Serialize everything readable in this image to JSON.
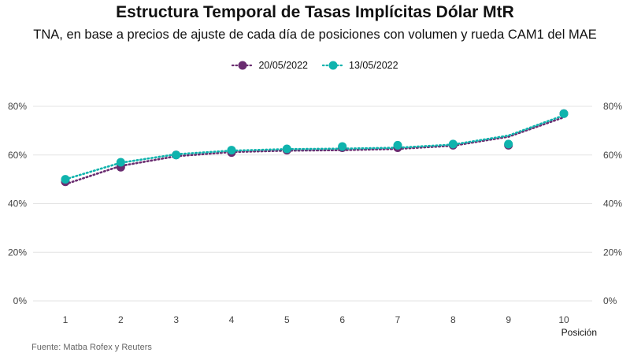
{
  "chart_data": {
    "type": "line",
    "title": "Estructura Temporal de Tasas Implícitas Dólar MtR",
    "subtitle": "TNA, en base a precios de ajuste de cada día de posiciones con volumen y rueda CAM1 del MAE",
    "xlabel": "Posición",
    "ylabel": "",
    "x": [
      1,
      2,
      3,
      4,
      5,
      6,
      7,
      8,
      9,
      10
    ],
    "ylim": [
      0,
      0.8
    ],
    "yticks": [
      0,
      0.2,
      0.4,
      0.6,
      0.8
    ],
    "ytick_labels": [
      "0%",
      "20%",
      "40%",
      "60%",
      "80%"
    ],
    "xtick_labels": [
      "1",
      "2",
      "3",
      "4",
      "5",
      "6",
      "7",
      "8",
      "9",
      "10"
    ],
    "grid": true,
    "legend_position": "top",
    "series": [
      {
        "name": "20/05/2022",
        "color": "#6a2c70",
        "values": [
          0.49,
          0.55,
          0.6,
          0.61,
          0.62,
          0.63,
          0.63,
          0.64,
          0.64,
          0.77
        ],
        "trend": [
          0.48,
          0.555,
          0.595,
          0.612,
          0.618,
          0.62,
          0.625,
          0.638,
          0.675,
          0.755
        ]
      },
      {
        "name": "13/05/2022",
        "color": "#0fb3ad",
        "values": [
          0.5,
          0.57,
          0.6,
          0.62,
          0.625,
          0.635,
          0.64,
          0.645,
          0.645,
          0.77
        ],
        "trend": [
          0.5,
          0.568,
          0.603,
          0.618,
          0.624,
          0.626,
          0.63,
          0.643,
          0.68,
          0.763
        ]
      }
    ]
  },
  "source": "Fuente: Matba Rofex y Reuters"
}
